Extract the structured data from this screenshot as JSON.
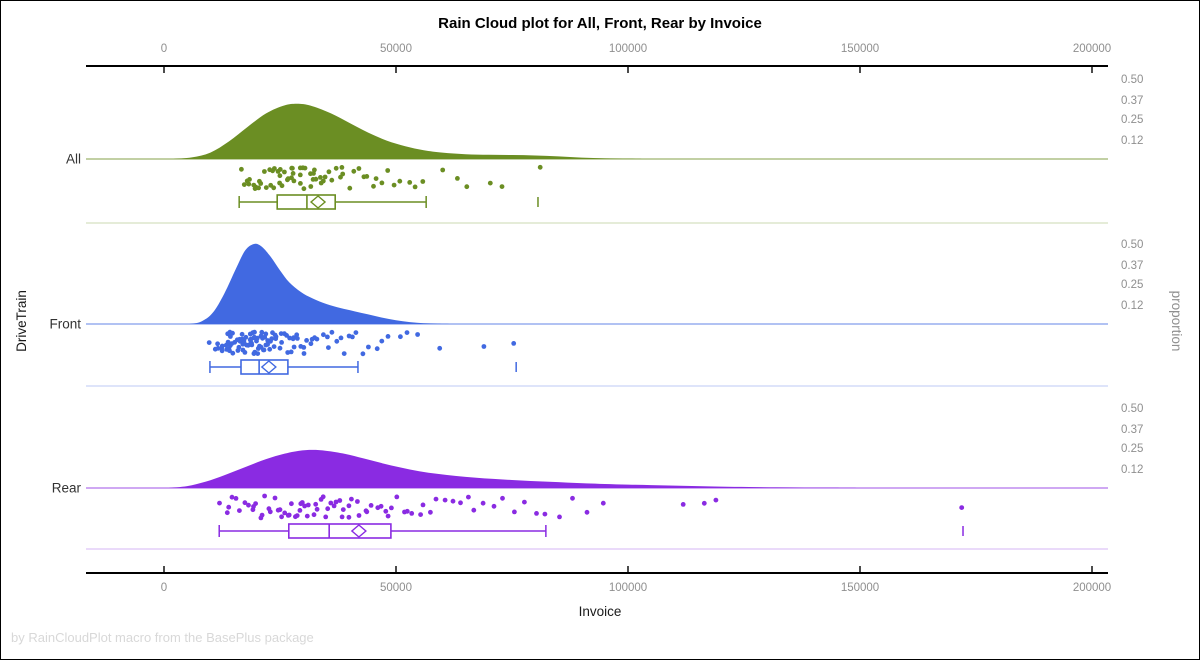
{
  "title": "Rain Cloud plot for All, Front, Rear by Invoice",
  "footer": "by RainCloudPlot macro from the BasePlus package",
  "x_axis": {
    "label": "Invoice",
    "ticks": [
      {
        "value": 0,
        "label": "0"
      },
      {
        "value": 50000,
        "label": "50000"
      },
      {
        "value": 100000,
        "label": "100000"
      },
      {
        "value": 150000,
        "label": "150000"
      },
      {
        "value": 200000,
        "label": "200000"
      }
    ]
  },
  "y_axis_left": {
    "label": "DriveTrain"
  },
  "y_axis_right": {
    "label": "proportion",
    "ticks": [
      {
        "value": 0.5,
        "label": "0.50"
      },
      {
        "value": 0.37,
        "label": "0.37"
      },
      {
        "value": 0.25,
        "label": "0.25"
      },
      {
        "value": 0.12,
        "label": "0.12"
      }
    ]
  },
  "colors": {
    "axis": "#000000",
    "tick_label": "#8f8f8f",
    "category_label": "#333333",
    "footer": "#d8d8d8",
    "all": "#6B8E23",
    "front": "#4169E1",
    "rear": "#8A2BE2"
  },
  "chart_data": {
    "type": "raincloud",
    "x_variable": "Invoice",
    "group_variable": "DriveTrain",
    "x_range": [
      0,
      200000
    ],
    "proportion_ticks": [
      0.5,
      0.37,
      0.25,
      0.12
    ],
    "groups": [
      {
        "name": "All",
        "color": "#6B8E23",
        "density": [
          [
            2000,
            0
          ],
          [
            6000,
            0.01
          ],
          [
            10000,
            0.04
          ],
          [
            14000,
            0.11
          ],
          [
            18000,
            0.2
          ],
          [
            22000,
            0.285
          ],
          [
            26000,
            0.335
          ],
          [
            29000,
            0.345
          ],
          [
            32000,
            0.33
          ],
          [
            36000,
            0.285
          ],
          [
            40000,
            0.225
          ],
          [
            44000,
            0.165
          ],
          [
            48000,
            0.115
          ],
          [
            52000,
            0.08
          ],
          [
            56000,
            0.055
          ],
          [
            60000,
            0.04
          ],
          [
            65000,
            0.03
          ],
          [
            70000,
            0.026
          ],
          [
            75000,
            0.025
          ],
          [
            80000,
            0.022
          ],
          [
            85000,
            0.016
          ],
          [
            90000,
            0.009
          ],
          [
            95000,
            0.004
          ],
          [
            100000,
            0.001
          ],
          [
            104000,
            0
          ]
        ],
        "box": {
          "whisker_low": 16200,
          "q1": 24400,
          "median": 30800,
          "mean": 33200,
          "q3": 36900,
          "whisker_high": 56500,
          "outliers": [
            80600
          ]
        },
        "points": [
          16900,
          17400,
          17800,
          18300,
          18600,
          19100,
          19400,
          19900,
          20300,
          20600,
          21000,
          21500,
          21900,
          22300,
          22700,
          23000,
          23400,
          23800,
          24100,
          24500,
          24900,
          25200,
          25600,
          26000,
          26300,
          26700,
          27100,
          27400,
          27800,
          28200,
          28500,
          28900,
          29300,
          29600,
          30000,
          30400,
          30700,
          31100,
          31500,
          31900,
          32200,
          32600,
          33000,
          33300,
          33700,
          34100,
          34800,
          35500,
          36200,
          36900,
          37600,
          38300,
          39000,
          39800,
          40700,
          41700,
          42700,
          43800,
          44900,
          46100,
          47300,
          48500,
          49800,
          51300,
          52800,
          54300,
          55800,
          60500,
          63000,
          65500,
          70000,
          72500,
          80600
        ]
      },
      {
        "name": "Front",
        "color": "#4169E1",
        "density": [
          [
            5500,
            0
          ],
          [
            8000,
            0.015
          ],
          [
            10500,
            0.07
          ],
          [
            13000,
            0.19
          ],
          [
            15500,
            0.345
          ],
          [
            17500,
            0.46
          ],
          [
            19400,
            0.5
          ],
          [
            21000,
            0.485
          ],
          [
            23000,
            0.42
          ],
          [
            25000,
            0.335
          ],
          [
            27000,
            0.26
          ],
          [
            29500,
            0.2
          ],
          [
            32000,
            0.16
          ],
          [
            35000,
            0.125
          ],
          [
            38000,
            0.1
          ],
          [
            41000,
            0.08
          ],
          [
            44000,
            0.06
          ],
          [
            47000,
            0.04
          ],
          [
            50000,
            0.024
          ],
          [
            53000,
            0.012
          ],
          [
            56000,
            0.005
          ],
          [
            59000,
            0.002
          ],
          [
            62000,
            0
          ]
        ],
        "box": {
          "whisker_low": 9900,
          "q1": 16600,
          "median": 20500,
          "mean": 22600,
          "q3": 26700,
          "whisker_high": 41800,
          "outliers": [
            75900
          ]
        },
        "points": [
          10200,
          10800,
          11300,
          11700,
          12100,
          12400,
          12700,
          13000,
          13200,
          13500,
          13700,
          13900,
          14100,
          14300,
          14500,
          14700,
          14900,
          15100,
          15300,
          15500,
          15700,
          15900,
          16050,
          16200,
          16350,
          16500,
          16650,
          16800,
          16950,
          17100,
          17250,
          17400,
          17550,
          17700,
          17850,
          18000,
          18150,
          18300,
          18450,
          18600,
          18750,
          18900,
          19050,
          19200,
          19350,
          19500,
          19650,
          19800,
          19950,
          20100,
          20250,
          20400,
          20550,
          20700,
          20850,
          21000,
          21200,
          21400,
          21600,
          21800,
          22000,
          22200,
          22400,
          22600,
          22800,
          23000,
          23200,
          23400,
          23600,
          23900,
          24200,
          24500,
          24800,
          25100,
          25400,
          25700,
          26000,
          26300,
          26700,
          27100,
          27500,
          27900,
          28300,
          28700,
          29100,
          29600,
          30100,
          30600,
          31100,
          31700,
          32300,
          32900,
          33500,
          34200,
          34900,
          35600,
          36300,
          37100,
          37900,
          38800,
          39700,
          40700,
          41800,
          43000,
          44300,
          45700,
          47200,
          48800,
          50500,
          52300,
          54200,
          59000,
          69000,
          75900
        ]
      },
      {
        "name": "Rear",
        "color": "#8A2BE2",
        "density": [
          [
            1000,
            0
          ],
          [
            5000,
            0.012
          ],
          [
            9000,
            0.04
          ],
          [
            13000,
            0.08
          ],
          [
            17000,
            0.125
          ],
          [
            21000,
            0.17
          ],
          [
            25000,
            0.207
          ],
          [
            29000,
            0.232
          ],
          [
            32000,
            0.238
          ],
          [
            35000,
            0.232
          ],
          [
            39000,
            0.213
          ],
          [
            43000,
            0.185
          ],
          [
            47000,
            0.155
          ],
          [
            51000,
            0.128
          ],
          [
            55000,
            0.105
          ],
          [
            59000,
            0.088
          ],
          [
            63000,
            0.075
          ],
          [
            67000,
            0.065
          ],
          [
            71000,
            0.057
          ],
          [
            75000,
            0.05
          ],
          [
            79000,
            0.044
          ],
          [
            83000,
            0.039
          ],
          [
            87000,
            0.034
          ],
          [
            91000,
            0.029
          ],
          [
            95000,
            0.025
          ],
          [
            100000,
            0.021
          ],
          [
            105000,
            0.018
          ],
          [
            110000,
            0.015
          ],
          [
            115000,
            0.012
          ],
          [
            120000,
            0.009
          ],
          [
            126000,
            0.006
          ],
          [
            132000,
            0.004
          ],
          [
            138000,
            0.002
          ],
          [
            144000,
            0.001
          ],
          [
            150000,
            0
          ]
        ],
        "box": {
          "whisker_low": 11900,
          "q1": 26900,
          "median": 35600,
          "mean": 42000,
          "q3": 48900,
          "whisker_high": 82300,
          "outliers": [
            172200
          ]
        },
        "points": [
          12300,
          13200,
          14100,
          15000,
          15800,
          16600,
          17400,
          18100,
          18800,
          19500,
          20200,
          20900,
          21500,
          22100,
          22700,
          23300,
          23900,
          24500,
          25000,
          25500,
          26000,
          26500,
          27000,
          27500,
          28000,
          28500,
          29000,
          29500,
          30000,
          30500,
          31000,
          31500,
          32000,
          32500,
          33000,
          33500,
          34000,
          34500,
          35000,
          35600,
          36200,
          36800,
          37400,
          38000,
          38700,
          39400,
          40100,
          40800,
          41500,
          42300,
          43100,
          43900,
          44700,
          45600,
          46500,
          47400,
          48300,
          49300,
          50300,
          51400,
          52500,
          53700,
          54900,
          56200,
          57500,
          58900,
          60400,
          61900,
          63500,
          65200,
          67000,
          68900,
          70900,
          73000,
          75200,
          77500,
          79900,
          82300,
          85000,
          88000,
          91500,
          95000,
          112000,
          116000,
          118500,
          172200
        ]
      }
    ]
  }
}
